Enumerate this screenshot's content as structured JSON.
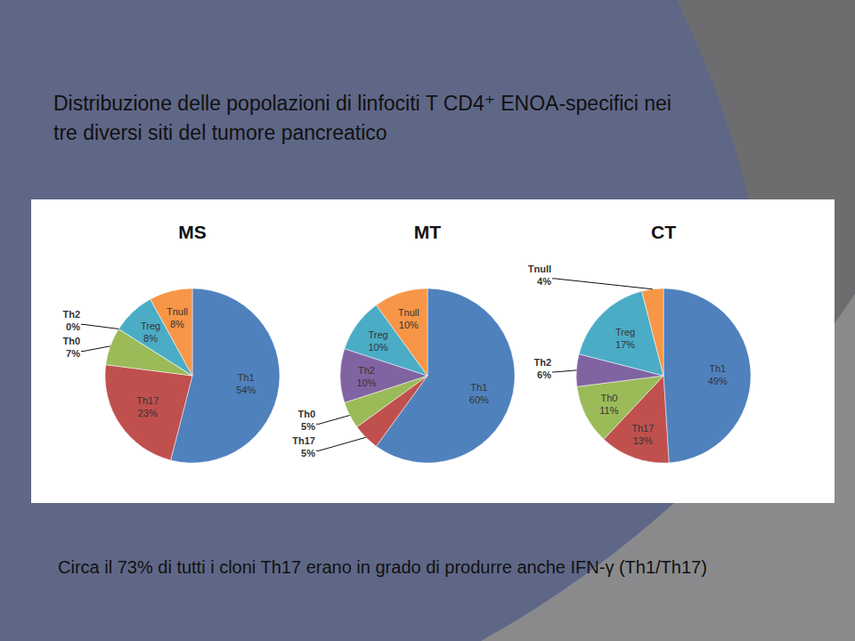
{
  "title": [
    "Distribuzione delle popolazioni di linfociti T CD4⁺ ENOA-specifici nei",
    "tre diversi siti del tumore pancreatico"
  ],
  "footer": "Circa il 73% di tutti i cloni Th17 erano in grado di produrre anche IFN-γ (Th1/Th17)",
  "chart_data": [
    {
      "type": "pie",
      "title": "MS",
      "categories": [
        "Th1",
        "Th17",
        "Th0",
        "Th2",
        "Treg",
        "Tnull"
      ],
      "values": [
        54,
        23,
        7,
        0,
        8,
        8
      ],
      "value_labels": [
        "54%",
        "23%",
        "7%",
        "0%",
        "8%",
        "8%"
      ],
      "colors": [
        "#4f81bd",
        "#c0504d",
        "#9bbb59",
        "#8064a2",
        "#4bacc6",
        "#f79646"
      ],
      "data_labels": true
    },
    {
      "type": "pie",
      "title": "MT",
      "categories": [
        "Th1",
        "Th17",
        "Th0",
        "Th2",
        "Treg",
        "Tnull"
      ],
      "values": [
        60,
        5,
        5,
        10,
        10,
        10
      ],
      "value_labels": [
        "60%",
        "5%",
        "5%",
        "10%",
        "10%",
        "10%"
      ],
      "colors": [
        "#4f81bd",
        "#c0504d",
        "#9bbb59",
        "#8064a2",
        "#4bacc6",
        "#f79646"
      ],
      "data_labels": true
    },
    {
      "type": "pie",
      "title": "CT",
      "categories": [
        "Th1",
        "Th17",
        "Th0",
        "Th2",
        "Treg",
        "Tnull"
      ],
      "values": [
        49,
        13,
        11,
        6,
        17,
        4
      ],
      "value_labels": [
        "49%",
        "13%",
        "11%",
        "6%",
        "17%",
        "4%"
      ],
      "colors": [
        "#4f81bd",
        "#c0504d",
        "#9bbb59",
        "#8064a2",
        "#4bacc6",
        "#f79646"
      ],
      "data_labels": true
    }
  ]
}
